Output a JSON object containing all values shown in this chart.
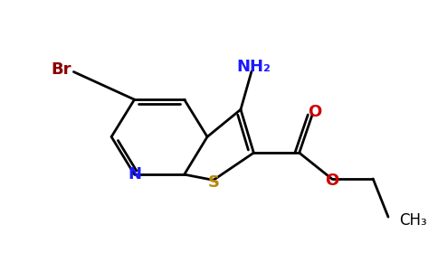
{
  "bg_color": "#ffffff",
  "bond_color": "#000000",
  "bond_width": 2.0,
  "atoms": {
    "N": {
      "color": "#1a1aff",
      "fontsize": 13,
      "fontweight": "bold"
    },
    "S": {
      "color": "#b8860b",
      "fontsize": 13,
      "fontweight": "bold"
    },
    "O": {
      "color": "#cc0000",
      "fontsize": 13,
      "fontweight": "bold"
    },
    "Br": {
      "color": "#8b0000",
      "fontsize": 13,
      "fontweight": "bold"
    },
    "NH2": {
      "color": "#1a1aff",
      "fontsize": 13,
      "fontweight": "bold"
    },
    "CH3": {
      "color": "#000000",
      "fontsize": 12,
      "fontweight": "normal"
    }
  },
  "figsize": [
    4.84,
    3.0
  ],
  "dpi": 100
}
